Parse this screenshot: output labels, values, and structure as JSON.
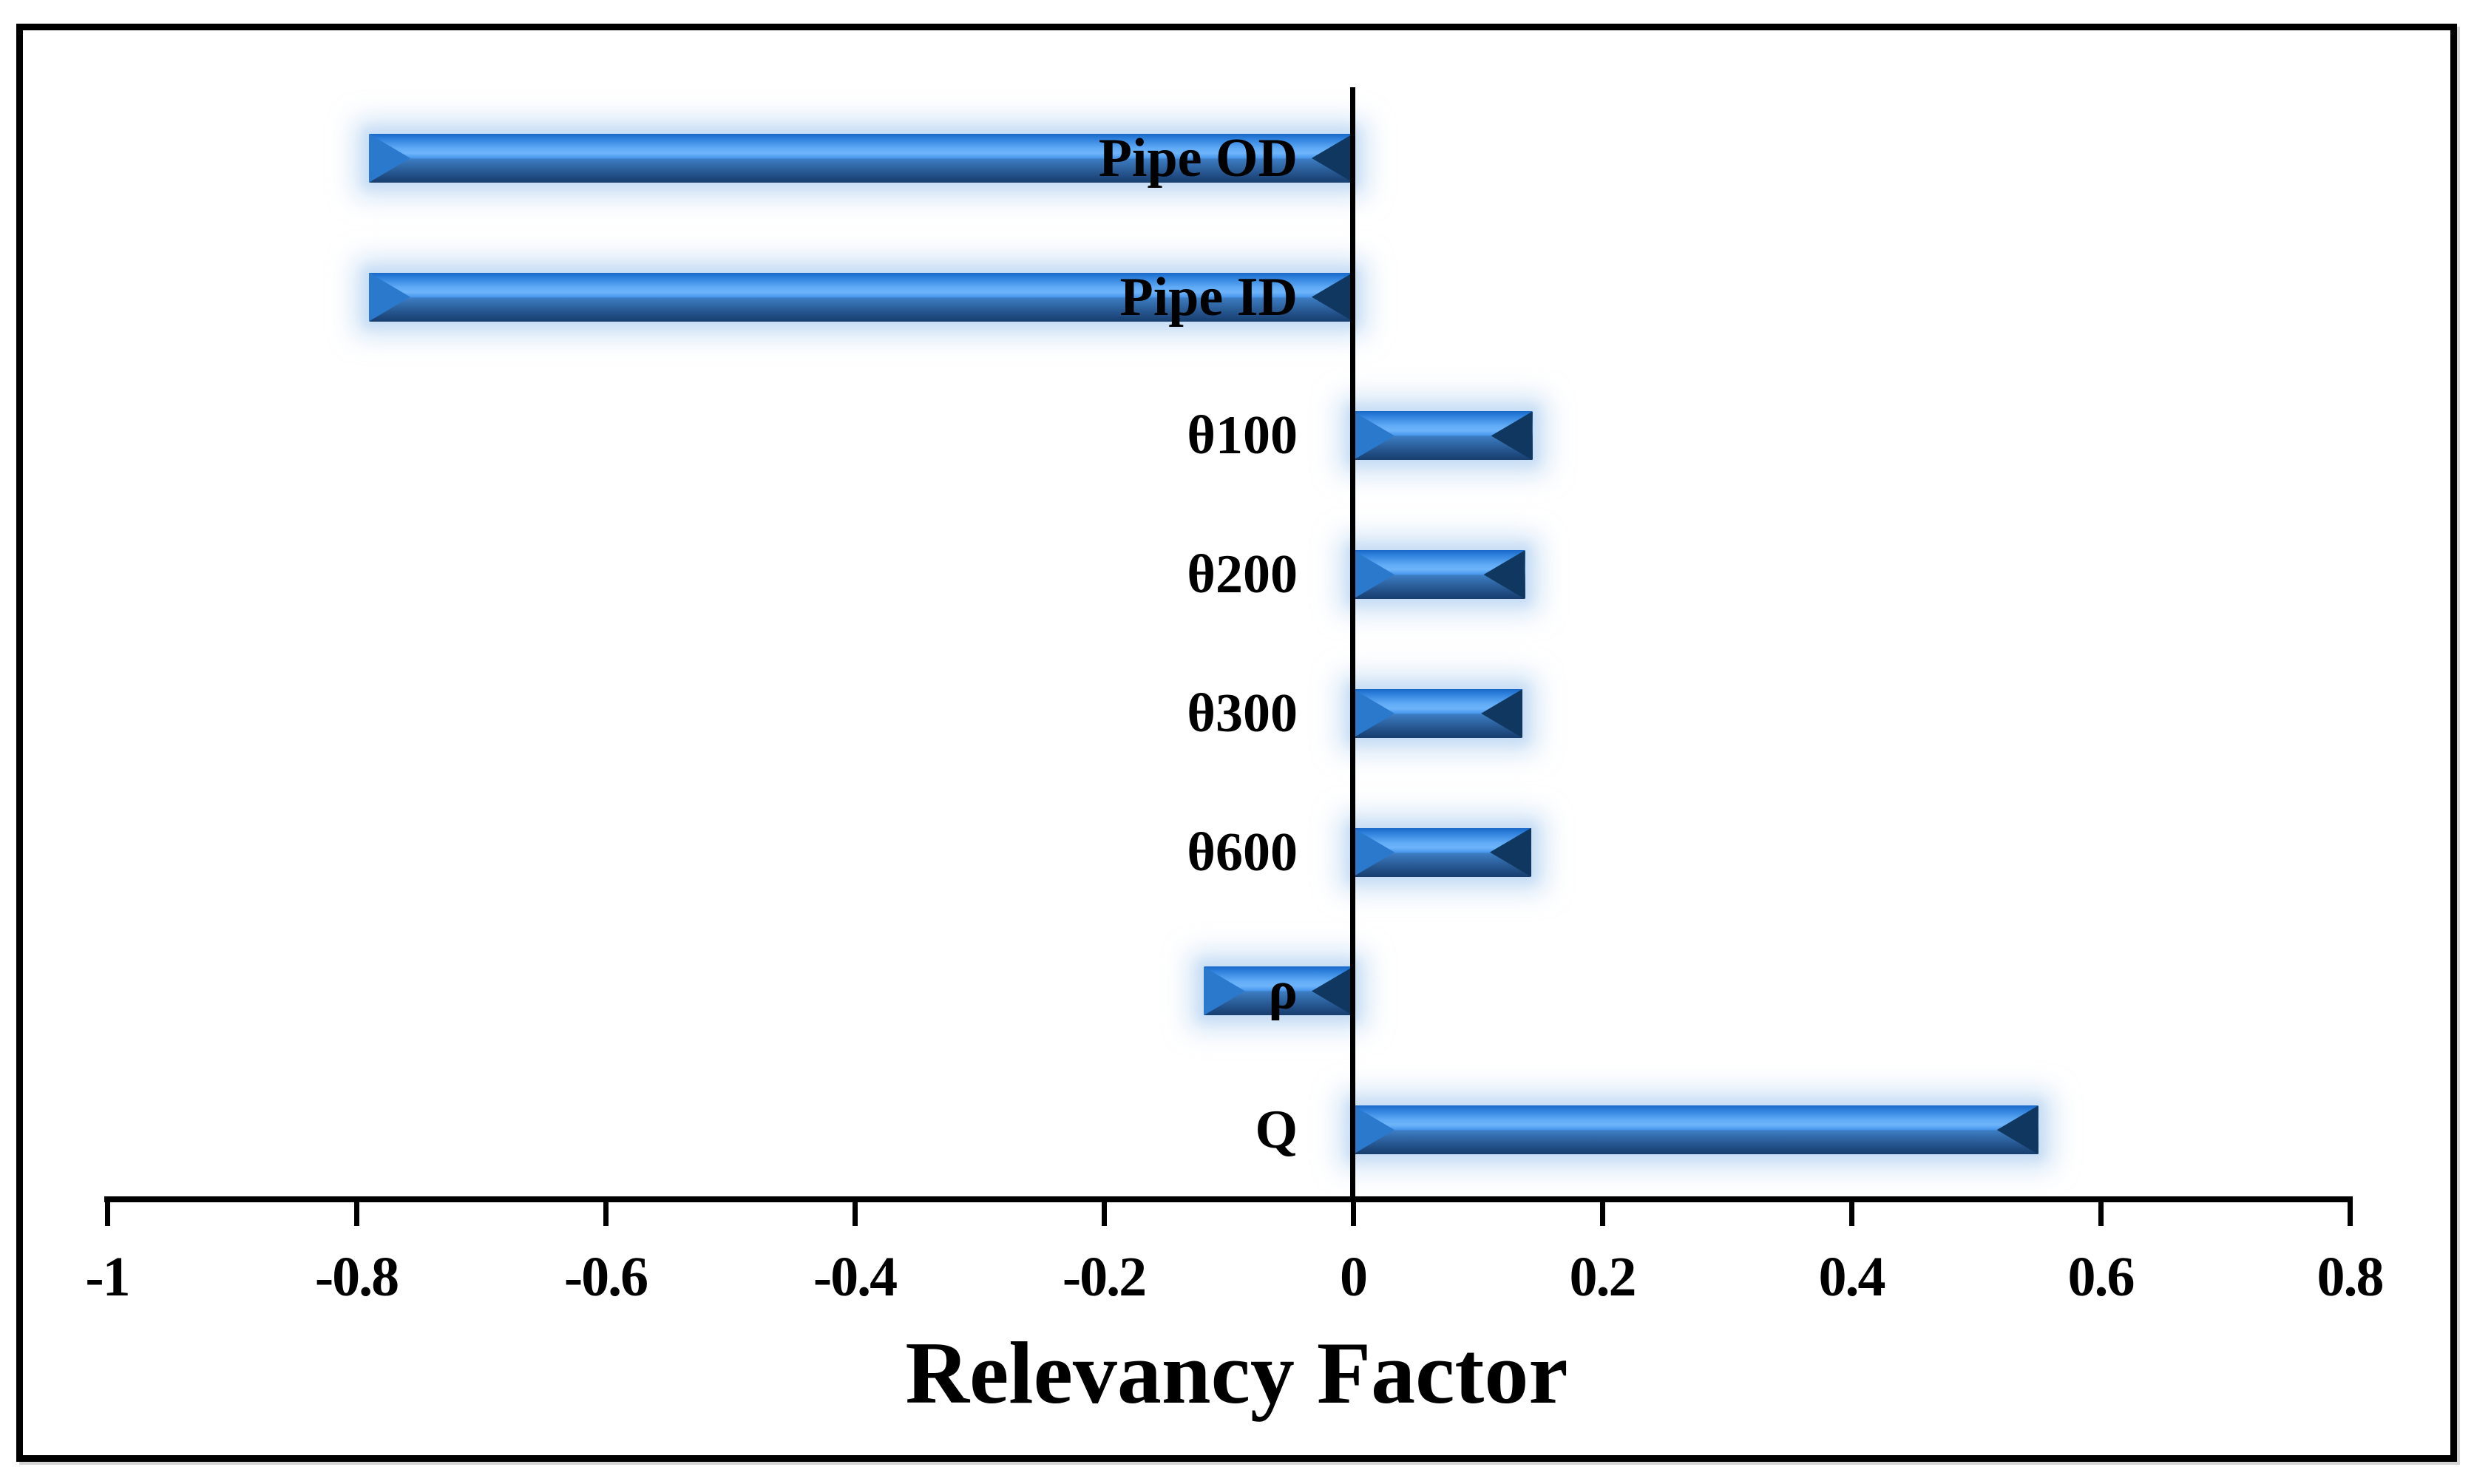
{
  "figure": {
    "background_color": "#ffffff",
    "frame_color": "#000000",
    "axis_color": "#000000",
    "text_color": "#000000"
  },
  "chart_data": {
    "type": "bar",
    "orientation": "horizontal",
    "title": "",
    "xlabel": "Relevancy Factor",
    "ylabel": "",
    "categories": [
      "Pipe OD",
      "Pipe ID",
      "θ100",
      "θ200",
      "θ300",
      "θ600",
      "ρ",
      "Q"
    ],
    "values": [
      -0.79,
      -0.79,
      0.144,
      0.138,
      0.136,
      0.143,
      -0.12,
      0.55
    ],
    "xlim": [
      -1,
      0.8
    ],
    "xticks": [
      -1,
      -0.8,
      -0.6,
      -0.4,
      -0.2,
      0,
      0.2,
      0.4,
      0.6,
      0.8
    ],
    "xtick_labels": [
      "-1",
      "-0.8",
      "-0.6",
      "-0.4",
      "-0.2",
      "0",
      "0.2",
      "0.4",
      "0.6",
      "0.8"
    ],
    "grid": false,
    "legend": null,
    "bar_style": {
      "fill": "#2f7fd8",
      "highlight": "#6db4fa",
      "shadow_edge": "#173e6e",
      "lit_facet": "#2b79cd",
      "dark_facet": "#10375f",
      "glow": "#b9d4f2"
    }
  }
}
